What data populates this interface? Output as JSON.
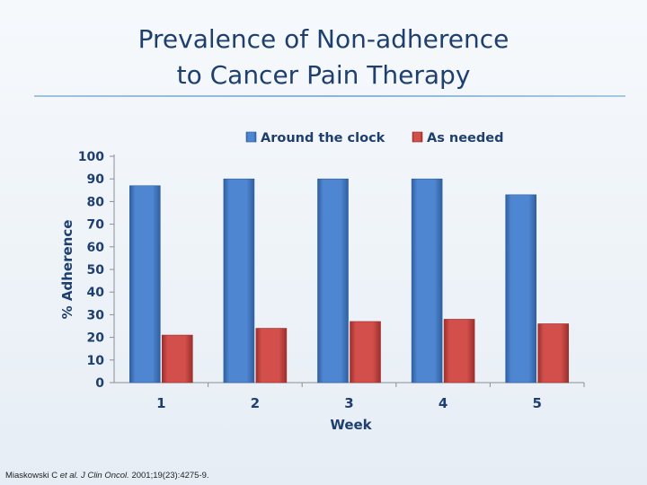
{
  "slide": {
    "title_line1": "Prevalence of Non-adherence",
    "title_line2": "to Cancer Pain Therapy",
    "citation": {
      "authors": "Miaskowski C",
      "etal": "et al.",
      "journal": "J Clin Oncol.",
      "ref": "2001;19(23):4275-9."
    }
  },
  "chart_data": {
    "type": "bar",
    "title": "",
    "xlabel": "Week",
    "ylabel": "% Adherence",
    "categories": [
      "1",
      "2",
      "3",
      "4",
      "5"
    ],
    "series": [
      {
        "name": "Around the clock",
        "values": [
          87,
          90,
          90,
          90,
          83
        ],
        "color": "#4f86d1",
        "dark": "#2f5f9f"
      },
      {
        "name": "As needed",
        "values": [
          21,
          24,
          27,
          28,
          26
        ],
        "color": "#d24f4b",
        "dark": "#9c2f2c"
      }
    ],
    "ylim": [
      0,
      100
    ],
    "yticks": [
      0,
      10,
      20,
      30,
      40,
      50,
      60,
      70,
      80,
      90,
      100
    ],
    "legend_position": "top",
    "grid": false
  }
}
